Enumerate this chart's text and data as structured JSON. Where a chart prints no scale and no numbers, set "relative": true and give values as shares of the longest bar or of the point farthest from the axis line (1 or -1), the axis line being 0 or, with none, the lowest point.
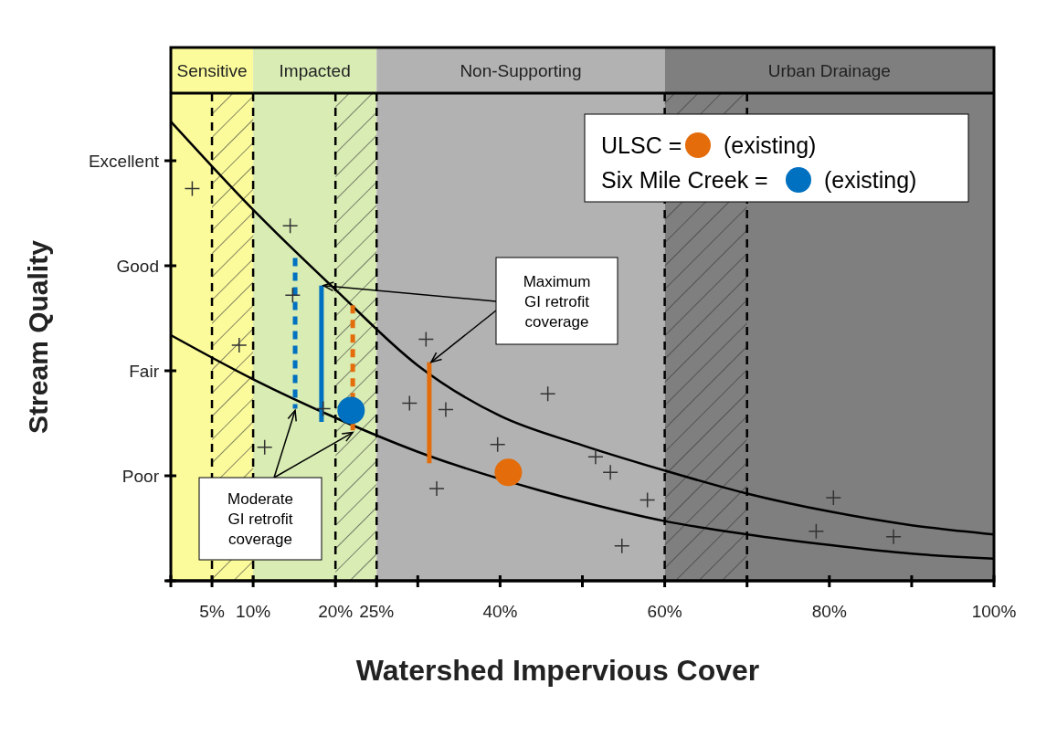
{
  "chart_data": {
    "type": "line",
    "xlabel": "Watershed Impervious Cover",
    "ylabel": "Stream Quality",
    "relative": true,
    "xlim": [
      0,
      100
    ],
    "xticks": [
      {
        "value": 0,
        "label": null
      },
      {
        "value": 5,
        "label": "5%"
      },
      {
        "value": 10,
        "label": "10%"
      },
      {
        "value": 20,
        "label": "20%"
      },
      {
        "value": 25,
        "label": "25%"
      },
      {
        "value": 30,
        "label": null
      },
      {
        "value": 40,
        "label": "40%"
      },
      {
        "value": 50,
        "label": null
      },
      {
        "value": 60,
        "label": "60%"
      },
      {
        "value": 70,
        "label": null
      },
      {
        "value": 80,
        "label": "80%"
      },
      {
        "value": 90,
        "label": null
      },
      {
        "value": 100,
        "label": "100%"
      }
    ],
    "legend": "top right",
    "bands": [
      {
        "axis": "x",
        "from": 0,
        "to": 10,
        "label": "Sensitive",
        "color": "#fbfb9c"
      },
      {
        "axis": "x",
        "from": 10,
        "to": 25,
        "label": "Impacted",
        "color": "#d8ecb4"
      },
      {
        "axis": "x",
        "from": 25,
        "to": 60,
        "label": "Non-Supporting",
        "color": "#b2b2b2"
      },
      {
        "axis": "x",
        "from": 60,
        "to": 100,
        "label": "Urban Drainage",
        "color": "#7f7f7f"
      },
      {
        "axis": "x",
        "from": 5,
        "to": 10,
        "color": "#333333"
      },
      {
        "axis": "x",
        "from": 20,
        "to": 25,
        "color": "#333333"
      },
      {
        "axis": "x",
        "from": 60,
        "to": 70,
        "color": "#333333"
      }
    ],
    "annotations": [
      "(existing)",
      "(existing)",
      "Maximum\nGI retrofit\ncoverage",
      {
        "text": "Moderate\nGI retrofit\ncoverage",
        "x": 15.1,
        "y": 0.375
      },
      "Poor",
      "Fair",
      "Good",
      "Excellent"
    ],
    "ref_lines": [
      {
        "axis": "x",
        "value": 5,
        "line_style": "dashed"
      },
      {
        "axis": "x",
        "value": 10,
        "line_style": "dashed"
      },
      {
        "axis": "x",
        "value": 20,
        "line_style": "dashed"
      },
      {
        "axis": "x",
        "value": 25,
        "line_style": "dashed"
      },
      {
        "axis": "x",
        "value": 60,
        "line_style": "dashed"
      },
      {
        "axis": "x",
        "value": 70,
        "line_style": "dashed"
      }
    ],
    "series": [
      {
        "color": "#000000",
        "line_style": "solid",
        "x": [
          0,
          10,
          20,
          30,
          40,
          50,
          60,
          70,
          80,
          90,
          100
        ],
        "values": [
          1,
          0.808,
          0.634,
          0.469,
          0.359,
          0.295,
          0.24,
          0.19,
          0.151,
          0.121,
          0.101
        ]
      },
      {
        "color": "#000000",
        "line_style": "solid",
        "x": [
          0,
          10,
          20,
          30,
          45,
          50,
          60,
          70,
          80,
          90,
          100
        ],
        "values": [
          0.535,
          0.439,
          0.355,
          0.281,
          0.196,
          0.172,
          0.13,
          0.101,
          0.078,
          0.059,
          0.048
        ]
      },
      {
        "type": "scatter",
        "marker": "cross",
        "color": "#333333",
        "x": [
          2.6,
          14.5,
          14.8,
          8.3,
          18.5,
          11.4,
          31.0,
          29.0,
          33.4,
          32.3,
          39.7,
          45.8,
          51.6,
          53.4,
          57.9,
          54.8,
          78.4,
          80.5,
          87.8
        ],
        "values": [
          0.854,
          0.773,
          0.622,
          0.513,
          0.375,
          0.291,
          0.526,
          0.387,
          0.373,
          0.201,
          0.297,
          0.407,
          0.27,
          0.236,
          0.176,
          0.076,
          0.108,
          0.181,
          0.096
        ]
      },
      {
        "type": "line",
        "color": "#0070c0",
        "line_style": "dashed",
        "x": [
          15.1,
          15.1
        ],
        "values": [
          0.703,
          0.375
        ]
      },
      {
        "type": "line",
        "color": "#0070c0",
        "line_style": "solid",
        "x": [
          18.3,
          18.3
        ],
        "values": [
          0.643,
          0.346
        ]
      },
      {
        "type": "line",
        "color": "#e46c0a",
        "line_style": "dashed",
        "x": [
          22.1,
          22.1
        ],
        "values": [
          0.6,
          0.327
        ]
      },
      {
        "type": "line",
        "color": "#e46c0a",
        "line_style": "solid",
        "x": [
          31.4,
          31.4
        ],
        "values": [
          0.476,
          0.256
        ]
      },
      {
        "type": "scatter",
        "name": "ULSC =",
        "marker": "circle",
        "color": "#e46c0a",
        "x": [
          41.0
        ],
        "values": [
          0.236
        ]
      },
      {
        "type": "scatter",
        "name": "Six Mile Creek =",
        "marker": "circle",
        "color": "#0070c0",
        "x": [
          21.9
        ],
        "values": [
          0.371
        ]
      }
    ]
  }
}
